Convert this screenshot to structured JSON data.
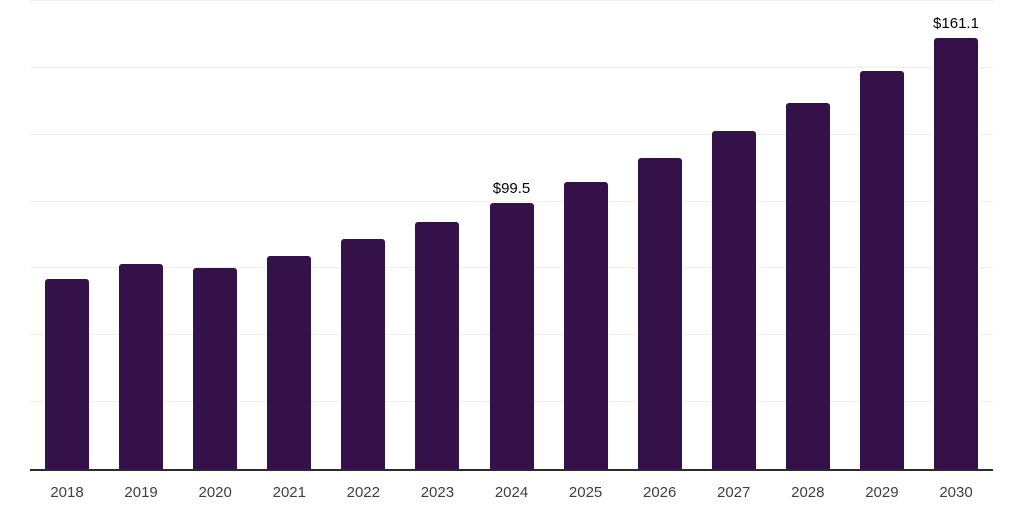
{
  "chart_data": {
    "type": "bar",
    "title": "",
    "xlabel": "",
    "ylabel": "",
    "categories": [
      "2018",
      "2019",
      "2020",
      "2021",
      "2022",
      "2023",
      "2024",
      "2025",
      "2026",
      "2027",
      "2028",
      "2029",
      "2030"
    ],
    "values": [
      71.0,
      76.8,
      75.2,
      79.5,
      85.8,
      92.3,
      99.5,
      107.3,
      116.4,
      126.3,
      136.8,
      148.6,
      161.1
    ],
    "value_labels": [
      "",
      "",
      "",
      "",
      "",
      "",
      "$99.5",
      "",
      "",
      "",
      "",
      "",
      "$161.1"
    ],
    "ylim": [
      0,
      175.3
    ],
    "gridline_step": 25,
    "grid": "horizontal",
    "legend": "none",
    "colors": {
      "bar": "#341249",
      "gridline": "#efefef",
      "axis_line": "#2b2b2b",
      "tick_label": "#404040",
      "data_label": "#000000",
      "background": "#ffffff"
    }
  }
}
